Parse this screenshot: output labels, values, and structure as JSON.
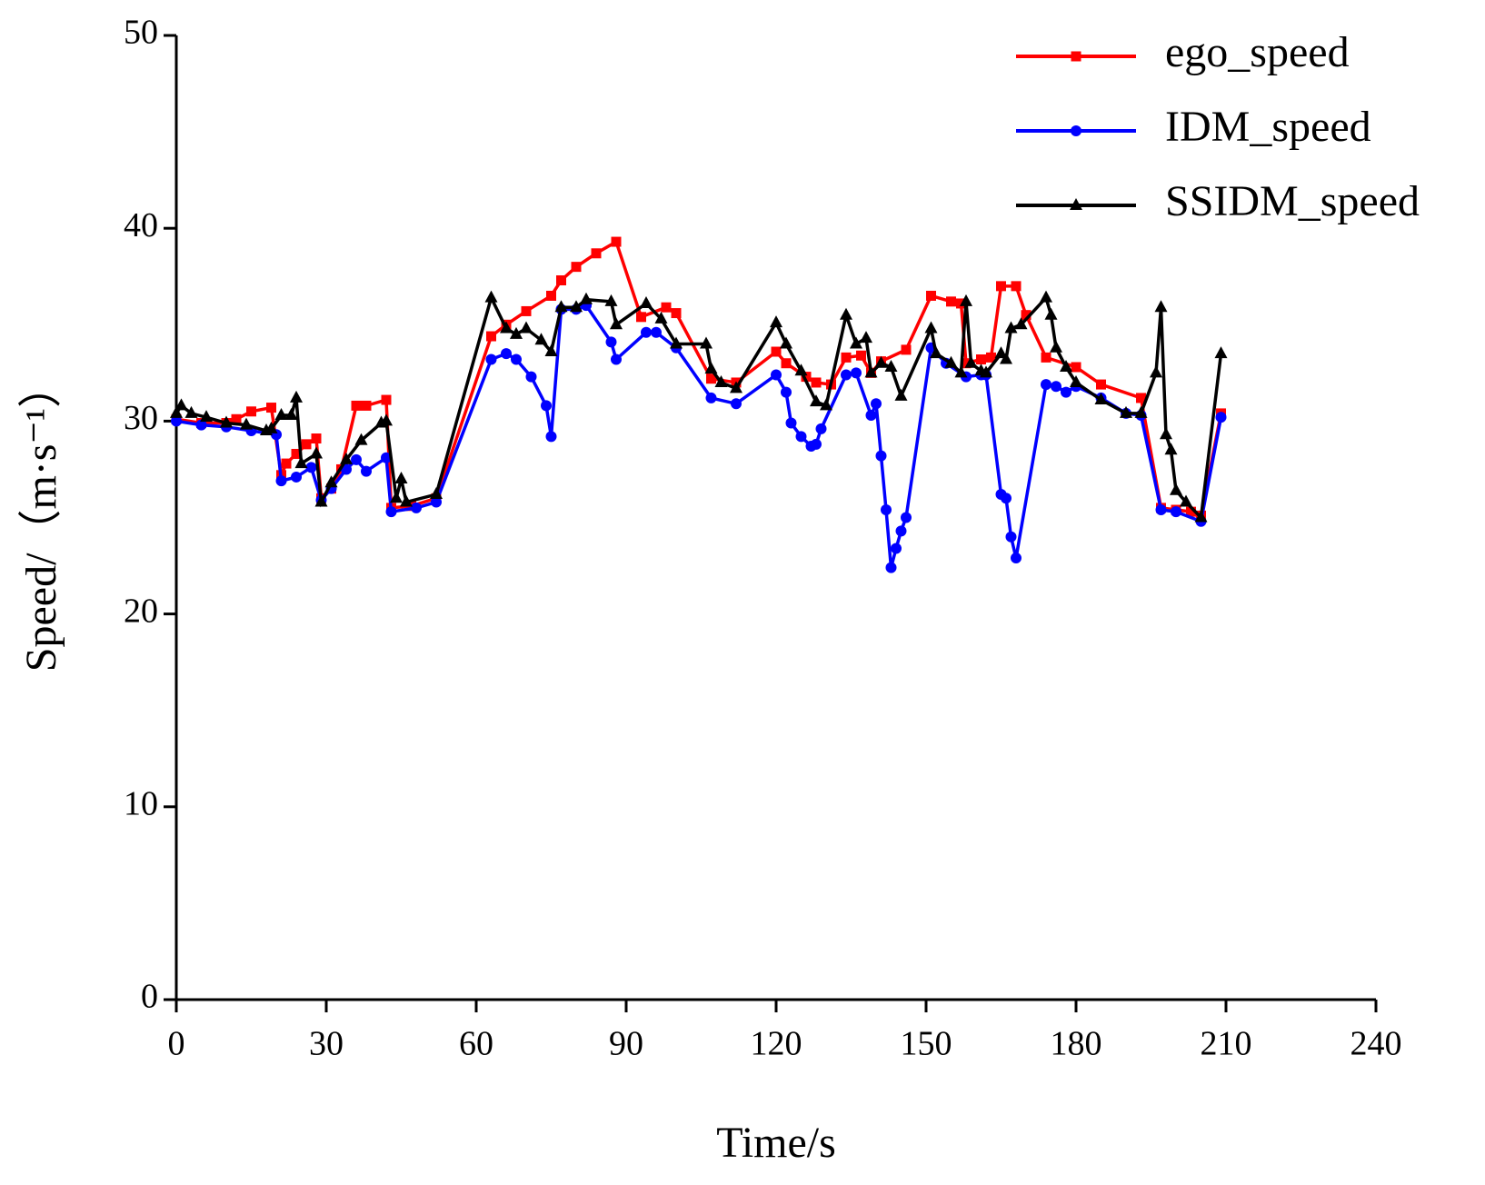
{
  "chart_data": {
    "type": "line",
    "xlabel": "Time/s",
    "ylabel": "Speed/（m·s⁻¹）",
    "xlim": [
      0,
      240
    ],
    "xticks": [
      0,
      30,
      60,
      90,
      120,
      150,
      180,
      210,
      240
    ],
    "ylim": [
      0,
      50
    ],
    "yticks": [
      0,
      10,
      20,
      30,
      40,
      50
    ],
    "grid": false,
    "legend": "upper right",
    "series": [
      {
        "name": "ego_speed",
        "color": "#ff0000",
        "marker": "square",
        "x": [
          0,
          5,
          10,
          12,
          15,
          19,
          21,
          22,
          24,
          26,
          28,
          29,
          31,
          33,
          36,
          38,
          42,
          43,
          47,
          52,
          63,
          66,
          70,
          75,
          77,
          80,
          84,
          88,
          93,
          98,
          100,
          107,
          112,
          120,
          122,
          126,
          128,
          131,
          134,
          137,
          139,
          141,
          146,
          151,
          155,
          157,
          158,
          161,
          163,
          165,
          168,
          170,
          174,
          180,
          185,
          193,
          197,
          200,
          203,
          205,
          209
        ],
        "values": [
          30.1,
          29.9,
          29.9,
          30.1,
          30.5,
          30.7,
          27.2,
          27.8,
          28.3,
          28.8,
          29.1,
          26.0,
          26.5,
          27.5,
          30.8,
          30.8,
          31.1,
          25.5,
          25.6,
          26.0,
          34.4,
          35.0,
          35.7,
          36.5,
          37.3,
          38.0,
          38.7,
          39.3,
          35.4,
          35.9,
          35.6,
          32.2,
          32.0,
          33.6,
          33.0,
          32.3,
          32.0,
          31.9,
          33.3,
          33.4,
          32.5,
          33.1,
          33.7,
          36.5,
          36.2,
          36.1,
          33.0,
          33.2,
          33.3,
          37.0,
          37.0,
          35.5,
          33.3,
          32.8,
          31.9,
          31.2,
          25.5,
          25.4,
          25.3,
          25.1,
          30.4
        ]
      },
      {
        "name": "IDM_speed",
        "color": "#0000ff",
        "marker": "circle",
        "x": [
          0,
          5,
          10,
          15,
          20,
          21,
          24,
          27,
          29,
          31,
          34,
          36,
          38,
          42,
          43,
          48,
          52,
          63,
          66,
          68,
          71,
          74,
          75,
          77,
          80,
          82,
          87,
          88,
          94,
          96,
          100,
          107,
          112,
          120,
          122,
          123,
          125,
          127,
          128,
          129,
          134,
          136,
          139,
          140,
          141,
          142,
          143,
          144,
          145,
          146,
          151,
          154,
          158,
          161,
          162,
          165,
          166,
          167,
          168,
          174,
          176,
          178,
          180,
          185,
          190,
          193,
          197,
          200,
          205,
          209
        ],
        "values": [
          30.0,
          29.8,
          29.7,
          29.5,
          29.3,
          26.9,
          27.1,
          27.6,
          25.9,
          26.5,
          27.5,
          28.0,
          27.4,
          28.1,
          25.3,
          25.5,
          25.8,
          33.2,
          33.5,
          33.2,
          32.3,
          30.8,
          29.2,
          35.8,
          35.8,
          36.0,
          34.1,
          33.2,
          34.6,
          34.6,
          33.8,
          31.2,
          30.9,
          32.4,
          31.5,
          29.9,
          29.2,
          28.7,
          28.8,
          29.6,
          32.4,
          32.5,
          30.3,
          30.9,
          28.2,
          25.4,
          22.4,
          23.4,
          24.3,
          25.0,
          33.8,
          33.0,
          32.3,
          32.4,
          32.4,
          26.2,
          26.0,
          24.0,
          22.9,
          31.9,
          31.8,
          31.5,
          31.8,
          31.2,
          30.4,
          30.3,
          25.4,
          25.3,
          24.8,
          30.2
        ]
      },
      {
        "name": "SSIDM_speed",
        "color": "#000000",
        "marker": "triangle",
        "x": [
          0,
          1,
          3,
          6,
          10,
          14,
          18,
          19,
          21,
          23,
          24,
          25,
          28,
          29,
          31,
          34,
          37,
          41,
          42,
          44,
          45,
          46,
          52,
          63,
          66,
          68,
          70,
          73,
          75,
          77,
          80,
          82,
          87,
          88,
          94,
          97,
          100,
          106,
          107,
          109,
          112,
          120,
          122,
          125,
          128,
          130,
          134,
          136,
          138,
          139,
          141,
          143,
          145,
          151,
          152,
          155,
          157,
          158,
          159,
          161,
          162,
          165,
          166,
          167,
          169,
          174,
          175,
          176,
          178,
          180,
          185,
          190,
          193,
          196,
          197,
          198,
          199,
          200,
          202,
          205,
          209
        ],
        "values": [
          30.4,
          30.8,
          30.4,
          30.2,
          29.9,
          29.8,
          29.5,
          29.6,
          30.3,
          30.3,
          31.2,
          27.8,
          28.3,
          25.8,
          26.8,
          28.0,
          29.0,
          29.9,
          30.0,
          26.0,
          27.0,
          25.8,
          26.2,
          36.4,
          34.8,
          34.5,
          34.8,
          34.2,
          33.6,
          35.9,
          35.9,
          36.3,
          36.2,
          35.0,
          36.1,
          35.3,
          34.0,
          34.0,
          32.7,
          32.0,
          31.7,
          35.1,
          34.0,
          32.6,
          31.0,
          30.8,
          35.5,
          34.0,
          34.3,
          32.5,
          33.0,
          32.8,
          31.3,
          34.8,
          33.5,
          33.0,
          32.5,
          36.2,
          33.0,
          32.6,
          32.5,
          33.5,
          33.2,
          34.8,
          35.0,
          36.4,
          35.5,
          33.8,
          32.8,
          32.0,
          31.1,
          30.4,
          30.4,
          32.5,
          35.9,
          29.3,
          28.5,
          26.4,
          25.8,
          25.0,
          33.5
        ]
      }
    ]
  }
}
